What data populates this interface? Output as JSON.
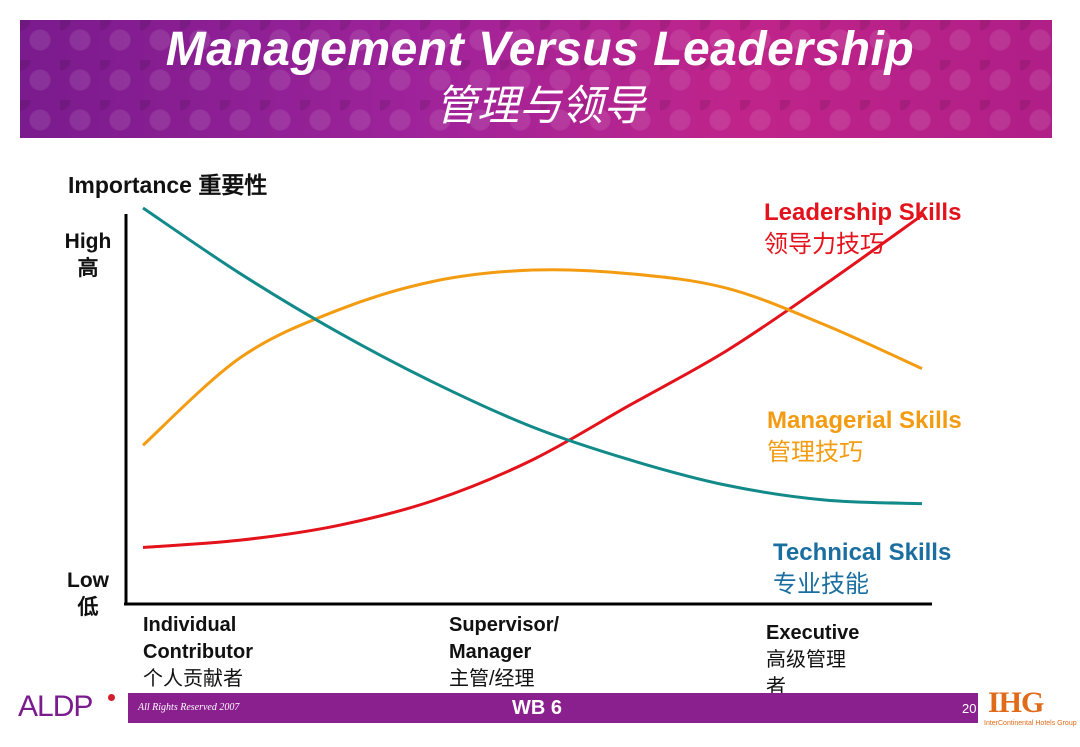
{
  "header": {
    "title_en": "Management Versus Leadership",
    "title_zh": "管理与领导"
  },
  "chart_data": {
    "type": "line",
    "ylabel": "Importance 重要性",
    "yticks": [
      {
        "en": "High",
        "zh": "高"
      },
      {
        "en": "Low",
        "zh": "低"
      }
    ],
    "x_categories": [
      {
        "lines": [
          "Individual",
          "Contributor",
          "个人贡献者"
        ]
      },
      {
        "lines": [
          "Supervisor/",
          "Manager",
          "主管/经理"
        ]
      },
      {
        "lines": [
          "Executive",
          "高级管理",
          "者"
        ]
      }
    ],
    "series": [
      {
        "name": "Leadership Skills",
        "name_zh": "领导力技巧",
        "color": "#e3121b",
        "x": [
          0.0,
          0.125,
          0.25,
          0.375,
          0.5,
          0.625,
          0.75,
          0.875,
          1.0
        ],
        "y": [
          0.07,
          0.09,
          0.13,
          0.2,
          0.31,
          0.46,
          0.61,
          0.79,
          0.98
        ]
      },
      {
        "name": "Managerial Skills",
        "name_zh": "管理技巧",
        "color": "#f39c12",
        "x": [
          0.0,
          0.125,
          0.25,
          0.375,
          0.5,
          0.625,
          0.75,
          0.875,
          1.0
        ],
        "y": [
          0.35,
          0.59,
          0.72,
          0.8,
          0.83,
          0.82,
          0.78,
          0.68,
          0.56
        ]
      },
      {
        "name": "Technical Skills",
        "name_zh": "专业技能",
        "color": "#138a8a",
        "x": [
          0.0,
          0.125,
          0.25,
          0.375,
          0.5,
          0.625,
          0.75,
          0.875,
          1.0
        ],
        "y": [
          1.0,
          0.82,
          0.66,
          0.52,
          0.4,
          0.31,
          0.24,
          0.2,
          0.19
        ]
      }
    ],
    "series_label_colors": {
      "Leadership Skills": "#e3121b",
      "Managerial Skills": "#f39c12",
      "Technical Skills": "#1b6fa0"
    },
    "legend": "right",
    "grid": false
  },
  "footer": {
    "copyright": "All Rights Reserved 2007",
    "workbook": "WB 6",
    "page": "20",
    "logo_left": "ALDP",
    "logo_right": "IHG",
    "logo_right_sub": "InterContinental Hotels Group"
  }
}
